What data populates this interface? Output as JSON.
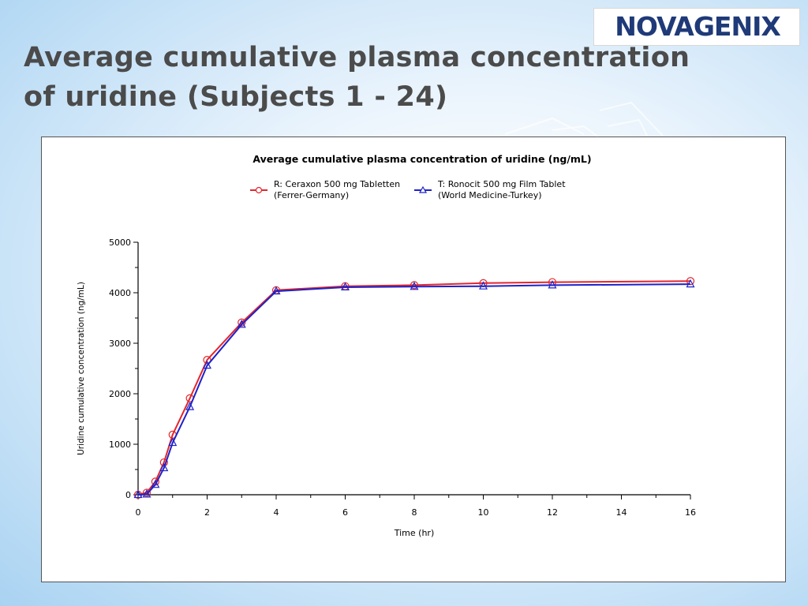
{
  "slide": {
    "title": "Average cumulative plasma concentration of uridine (Subjects 1 - 24)"
  },
  "logo": {
    "text": "NOVAGENIX",
    "brand_color": "#1f3a78"
  },
  "chart_data": {
    "type": "line",
    "title": "Average cumulative plasma concentration of uridine (ng/mL)",
    "xlabel": "Time (hr)",
    "ylabel": "Uridine cumulative concentration (ng/mL)",
    "xlim": [
      0,
      16
    ],
    "ylim": [
      0,
      5000
    ],
    "x_ticks": [
      0,
      2,
      4,
      6,
      8,
      10,
      12,
      14,
      16
    ],
    "y_ticks": [
      0,
      1000,
      2000,
      3000,
      4000,
      5000
    ],
    "grid": false,
    "legend_position": "top-center",
    "series": [
      {
        "name": "R: Ceraxon 500 mg Tabletten (Ferrer-Germany)",
        "legend_lines": [
          "R: Ceraxon 500 mg Tabletten",
          "(Ferrer-Germany)"
        ],
        "color": "#e3262c",
        "marker": "circle",
        "x": [
          0,
          0.25,
          0.5,
          0.75,
          1,
          1.5,
          2,
          3,
          4,
          6,
          8,
          10,
          12,
          16
        ],
        "y": [
          0,
          40,
          260,
          640,
          1190,
          1910,
          2670,
          3410,
          4050,
          4130,
          4150,
          4190,
          4210,
          4230
        ]
      },
      {
        "name": "T: Ronocit 500 mg Film Tablet (World Medicine-Turkey)",
        "legend_lines": [
          "T: Ronocit 500 mg Film Tablet",
          "(World Medicine-Turkey)"
        ],
        "color": "#1e22c8",
        "marker": "triangle",
        "x": [
          0,
          0.25,
          0.5,
          0.75,
          1,
          1.5,
          2,
          3,
          4,
          6,
          8,
          10,
          12,
          16
        ],
        "y": [
          0,
          10,
          200,
          530,
          1030,
          1740,
          2560,
          3370,
          4030,
          4110,
          4120,
          4130,
          4150,
          4170
        ]
      }
    ]
  }
}
